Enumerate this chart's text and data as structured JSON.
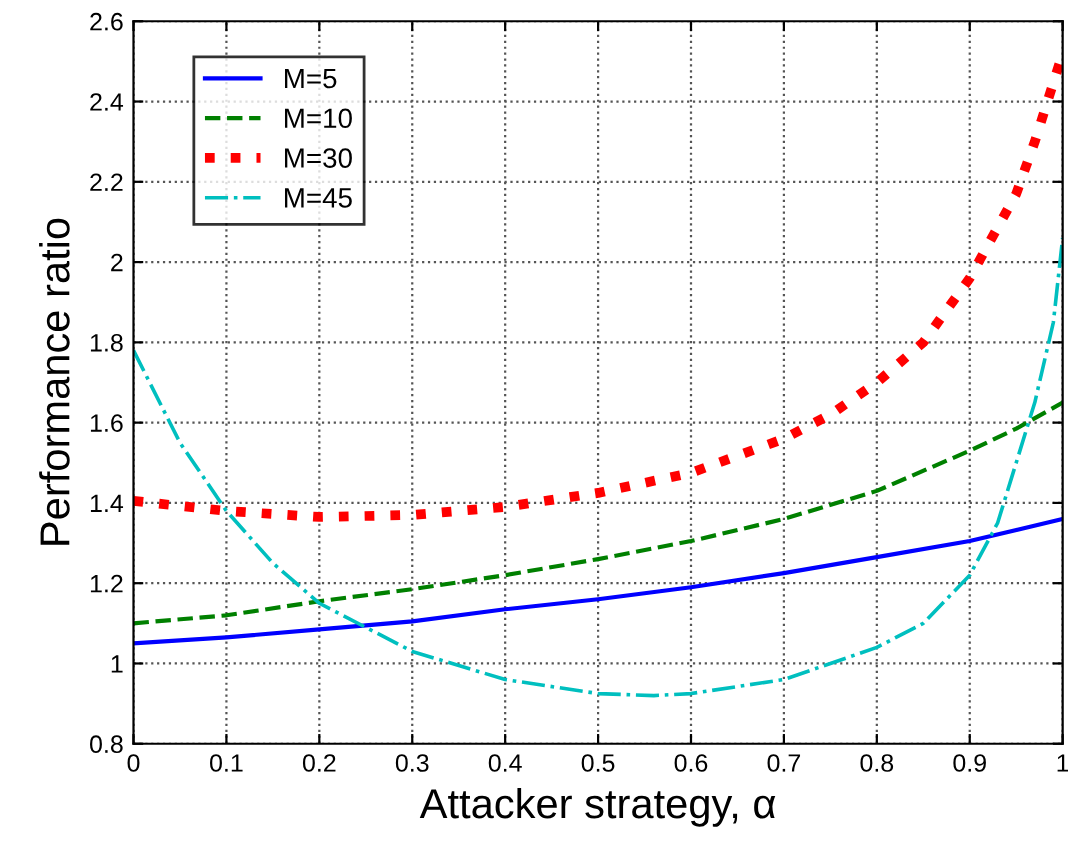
{
  "chart_data": {
    "type": "line",
    "xlabel": "Attacker strategy, α",
    "ylabel": "Performance ratio",
    "xlim": [
      0,
      1
    ],
    "ylim": [
      0.8,
      2.6
    ],
    "xticks": [
      0,
      0.1,
      0.2,
      0.3,
      0.4,
      0.5,
      0.6,
      0.7,
      0.8,
      0.9,
      1
    ],
    "yticks": [
      0.8,
      1,
      1.2,
      1.4,
      1.6,
      1.8,
      2,
      2.2,
      2.4,
      2.6
    ],
    "grid": true,
    "legend": "top left",
    "series": [
      {
        "name": "M=5",
        "color": "#0000ff",
        "line_style": "solid",
        "x": [
          0,
          0.1,
          0.2,
          0.3,
          0.4,
          0.5,
          0.6,
          0.7,
          0.8,
          0.9,
          1
        ],
        "values": [
          1.05,
          1.065,
          1.085,
          1.105,
          1.135,
          1.16,
          1.19,
          1.225,
          1.265,
          1.305,
          1.36
        ]
      },
      {
        "name": "M=10",
        "color": "#008000",
        "line_style": "dashed",
        "x": [
          0,
          0.1,
          0.2,
          0.3,
          0.4,
          0.5,
          0.6,
          0.7,
          0.8,
          0.9,
          0.95,
          1
        ],
        "values": [
          1.1,
          1.12,
          1.155,
          1.185,
          1.22,
          1.26,
          1.305,
          1.36,
          1.43,
          1.53,
          1.585,
          1.65
        ]
      },
      {
        "name": "M=30",
        "color": "#ff0000",
        "line_style": "dotted",
        "x": [
          0,
          0.1,
          0.2,
          0.3,
          0.4,
          0.5,
          0.6,
          0.7,
          0.75,
          0.8,
          0.85,
          0.9,
          0.95,
          0.97,
          1
        ],
        "values": [
          1.405,
          1.38,
          1.365,
          1.37,
          1.39,
          1.425,
          1.475,
          1.56,
          1.62,
          1.7,
          1.8,
          1.96,
          2.17,
          2.3,
          2.52
        ]
      },
      {
        "name": "M=45",
        "color": "#00bfbf",
        "line_style": "dashdot",
        "x": [
          0,
          0.05,
          0.1,
          0.15,
          0.2,
          0.3,
          0.4,
          0.5,
          0.56,
          0.6,
          0.7,
          0.8,
          0.85,
          0.9,
          0.93,
          0.95,
          0.97,
          0.99,
          1
        ],
        "values": [
          1.78,
          1.55,
          1.38,
          1.25,
          1.15,
          1.03,
          0.96,
          0.925,
          0.92,
          0.925,
          0.96,
          1.04,
          1.1,
          1.22,
          1.35,
          1.5,
          1.65,
          1.85,
          2.06
        ]
      }
    ]
  }
}
